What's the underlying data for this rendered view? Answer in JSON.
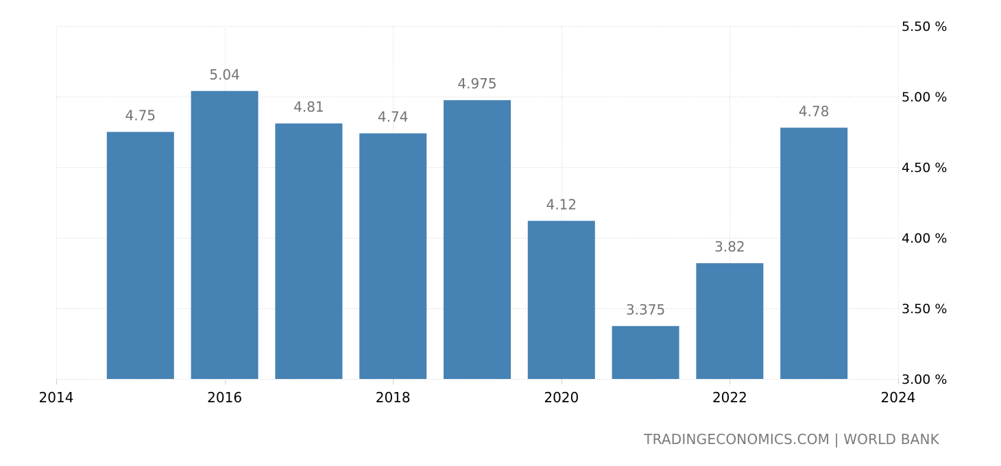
{
  "chart_data": {
    "type": "bar",
    "title": "",
    "xlabel": "",
    "ylabel": "",
    "categories": [
      "2015",
      "2016",
      "2017",
      "2018",
      "2019",
      "2020",
      "2021",
      "2022",
      "2023"
    ],
    "values": [
      4.75,
      5.04,
      4.81,
      4.74,
      4.975,
      4.12,
      3.375,
      3.82,
      4.78
    ],
    "data_labels": [
      "4.75",
      "5.04",
      "4.81",
      "4.74",
      "4.975",
      "4.12",
      "3.375",
      "3.82",
      "4.78"
    ],
    "ylim": [
      3.0,
      5.5
    ],
    "xlim": [
      2014,
      2024
    ],
    "y_ticks": [
      {
        "value": 5.5,
        "label": "5.50 %"
      },
      {
        "value": 5.0,
        "label": "5.00 %"
      },
      {
        "value": 4.5,
        "label": "4.50 %"
      },
      {
        "value": 4.0,
        "label": "4.00 %"
      },
      {
        "value": 3.5,
        "label": "3.50 %"
      },
      {
        "value": 3.0,
        "label": "3.00 %"
      }
    ],
    "x_ticks": [
      {
        "value": 2014,
        "label": "2014"
      },
      {
        "value": 2016,
        "label": "2016"
      },
      {
        "value": 2018,
        "label": "2018"
      },
      {
        "value": 2020,
        "label": "2020"
      },
      {
        "value": 2022,
        "label": "2022"
      },
      {
        "value": 2024,
        "label": "2024"
      }
    ],
    "y_axis_position": "right",
    "grid": true,
    "legend": null,
    "bar_color": "#4682b4",
    "label_color": "#737373"
  },
  "footer": {
    "source": "TRADINGECONOMICS.COM | WORLD BANK"
  }
}
